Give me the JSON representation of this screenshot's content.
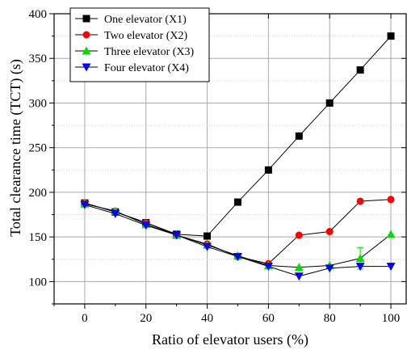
{
  "chart_data": {
    "type": "line",
    "title": "",
    "xlabel": "Ratio of elevator users (%)",
    "ylabel": "Total clearance time (TCT) (s)",
    "xlim": [
      -10,
      105
    ],
    "ylim": [
      75,
      400
    ],
    "x": [
      0,
      10,
      20,
      30,
      40,
      50,
      60,
      70,
      80,
      90,
      100
    ],
    "x_ticks": [
      "0",
      "20",
      "40",
      "60",
      "80",
      "100"
    ],
    "x_tick_values": [
      0,
      20,
      40,
      60,
      80,
      100
    ],
    "y_ticks": [
      "100",
      "150",
      "200",
      "250",
      "300",
      "350",
      "400"
    ],
    "y_tick_values": [
      100,
      150,
      200,
      250,
      300,
      350,
      400
    ],
    "grid": true,
    "legend_position": "top-left",
    "series": [
      {
        "name": "One elevator (X1)",
        "marker": "square",
        "color": "#000000",
        "values": [
          188,
          178,
          166,
          153,
          151,
          189,
          225,
          263,
          300,
          337,
          375
        ]
      },
      {
        "name": "Two elevator (X2)",
        "marker": "circle",
        "color": "#ff0000",
        "values": [
          188,
          178,
          166,
          152,
          142,
          128,
          120,
          152,
          156,
          190,
          192
        ]
      },
      {
        "name": "Three elevator (X3)",
        "marker": "triangle-up",
        "color": "#00dd00",
        "values": [
          187,
          179,
          164,
          152,
          141,
          129,
          118,
          116,
          118,
          126,
          153
        ],
        "error": [
          null,
          null,
          null,
          null,
          null,
          null,
          null,
          null,
          null,
          12,
          null
        ]
      },
      {
        "name": "Four elevator (X4)",
        "marker": "triangle-down",
        "color": "#0000ff",
        "values": [
          186,
          176,
          163,
          152,
          139,
          128,
          117,
          106,
          115,
          117,
          117
        ]
      }
    ]
  }
}
